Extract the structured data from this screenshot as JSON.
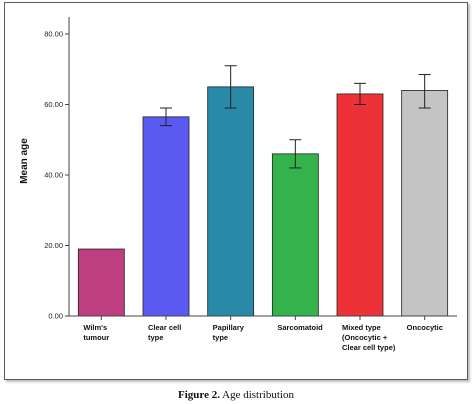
{
  "chart_data": {
    "type": "bar",
    "title": "",
    "xlabel": "",
    "ylabel": "Mean age",
    "ylim": [
      0,
      80
    ],
    "yticks": [
      "0.00",
      "20.00",
      "40.00",
      "60.00",
      "80.00"
    ],
    "ytick_values": [
      0,
      20,
      40,
      60,
      80
    ],
    "categories": [
      [
        "Wilm's",
        "tumour"
      ],
      [
        "Clear cell",
        "type"
      ],
      [
        "Papillary",
        "type"
      ],
      [
        "Sarcomatoid"
      ],
      [
        "Mixed type",
        "(Oncocytic +",
        "Clear cell type)"
      ],
      [
        "Oncocytic"
      ]
    ],
    "values": [
      19,
      56.5,
      65,
      46,
      63,
      64
    ],
    "error_low": [
      null,
      54,
      59,
      42,
      60,
      59
    ],
    "error_high": [
      null,
      59,
      71,
      50,
      66,
      68.5
    ],
    "colors": [
      "#bd3f80",
      "#5a5af2",
      "#2a89a6",
      "#34b24c",
      "#ec3238",
      "#c4c4c4"
    ],
    "grid": false
  },
  "caption": {
    "label": "Figure 2.",
    "text": " Age distribution"
  }
}
